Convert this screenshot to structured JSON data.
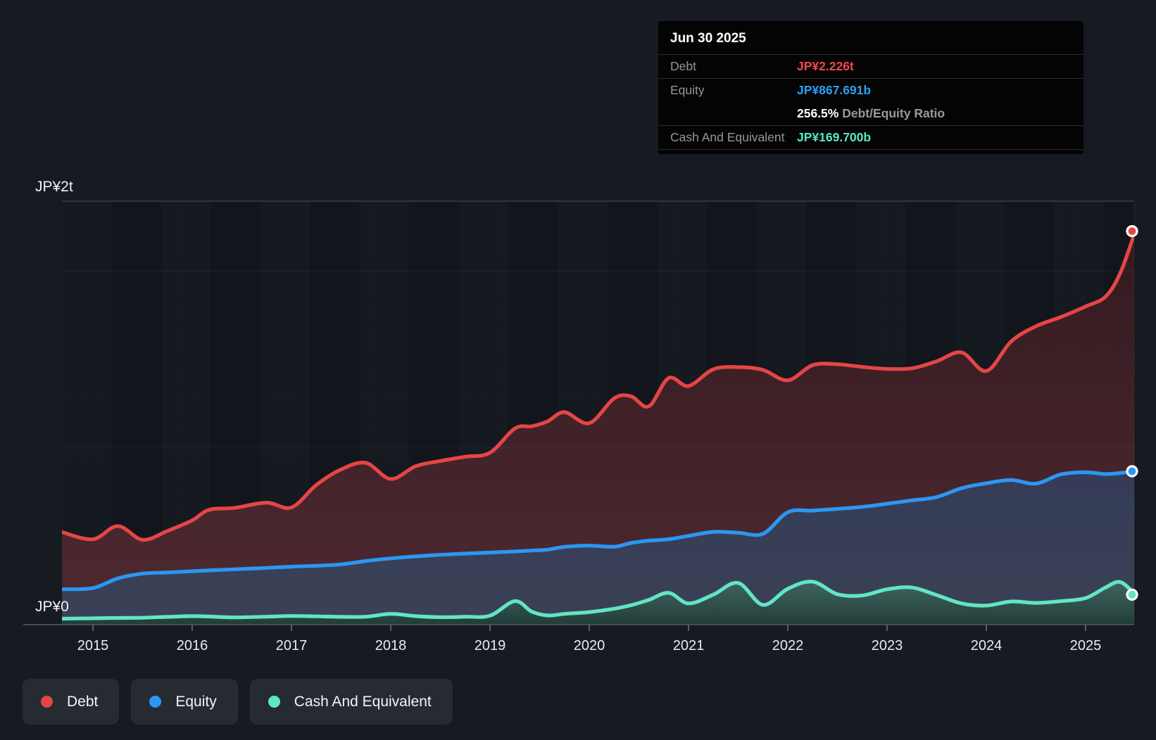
{
  "tooltip": {
    "date": "Jun 30 2025",
    "debt_label": "Debt",
    "debt_value": "JP¥2.226t",
    "equity_label": "Equity",
    "equity_value": "JP¥867.691b",
    "ratio_value": "256.5%",
    "ratio_label": "Debt/Equity Ratio",
    "cash_label": "Cash And Equivalent",
    "cash_value": "JP¥169.700b"
  },
  "colors": {
    "debt": "#e64545",
    "equity": "#2b97f2",
    "cash": "#62e5c3",
    "axis": "#454c55",
    "tick": "#565d66",
    "year_label": "#e9ecef",
    "y_label": "#f0f2f5"
  },
  "chart_data": {
    "type": "area",
    "unit": "JP¥ billions",
    "y_top_label": "JP¥2t",
    "y_zero_label": "JP¥0",
    "x_tick_labels": [
      "2015",
      "2016",
      "2017",
      "2018",
      "2019",
      "2020",
      "2021",
      "2022",
      "2023",
      "2024",
      "2025"
    ],
    "x_years": [
      2014.69,
      2015,
      2015.25,
      2015.5,
      2015.75,
      2016,
      2016.17,
      2016.42,
      2016.75,
      2017,
      2017.25,
      2017.5,
      2017.75,
      2018,
      2018.25,
      2018.5,
      2018.75,
      2019,
      2019.25,
      2019.42,
      2019.58,
      2019.75,
      2020,
      2020.25,
      2020.42,
      2020.6,
      2020.8,
      2021,
      2021.25,
      2021.5,
      2021.75,
      2022,
      2022.25,
      2022.5,
      2022.75,
      2023,
      2023.25,
      2023.5,
      2023.75,
      2024,
      2024.25,
      2024.5,
      2024.75,
      2025,
      2025.2,
      2025.35,
      2025.5
    ],
    "ylim_b": [
      0,
      2395
    ],
    "y_gridline_values_b": [
      2000,
      1000
    ],
    "legend_position": "bottom",
    "series": [
      {
        "name": "Debt",
        "color": "#e64545",
        "fill_top": "#331a20",
        "fill_bottom": "#4f2a31",
        "values": [
          523,
          483,
          558,
          480,
          530,
          590,
          650,
          660,
          690,
          663,
          790,
          878,
          915,
          824,
          896,
          926,
          950,
          973,
          1110,
          1122,
          1150,
          1202,
          1140,
          1280,
          1292,
          1235,
          1395,
          1350,
          1445,
          1457,
          1441,
          1382,
          1468,
          1473,
          1458,
          1447,
          1450,
          1490,
          1540,
          1435,
          1602,
          1688,
          1740,
          1800,
          1855,
          1990,
          2226
        ]
      },
      {
        "name": "Equity",
        "color": "#2b97f2",
        "fill_top": "#353c57",
        "fill_bottom": "#3a4156",
        "values": [
          200,
          207,
          262,
          289,
          295,
          302,
          307,
          313,
          321,
          328,
          333,
          341,
          360,
          375,
          386,
          395,
          402,
          408,
          414,
          419,
          424,
          440,
          447,
          441,
          462,
          475,
          483,
          502,
          525,
          520,
          514,
          636,
          645,
          655,
          666,
          684,
          703,
          722,
          772,
          800,
          818,
          798,
          850,
          862,
          852,
          858,
          867.7
        ]
      },
      {
        "name": "Cash And Equivalent",
        "color": "#62e5c3",
        "fill_top": "#3f655e",
        "fill_bottom": "#223d3a",
        "values": [
          34,
          36,
          38,
          39,
          44,
          48,
          46,
          41,
          45,
          49,
          47,
          44,
          45,
          61,
          48,
          42,
          45,
          51,
          133,
          74,
          52,
          61,
          71,
          90,
          110,
          140,
          180,
          120,
          170,
          236,
          112,
          203,
          243,
          172,
          165,
          200,
          210,
          167,
          120,
          108,
          131,
          123,
          133,
          150,
          210,
          241,
          169.7
        ]
      }
    ],
    "last_point": {
      "date": "Jun 30 2025",
      "debt_b": 2226,
      "equity_b": 867.691,
      "cash_b": 169.7,
      "debt_equity_ratio_pct": 256.5
    }
  }
}
